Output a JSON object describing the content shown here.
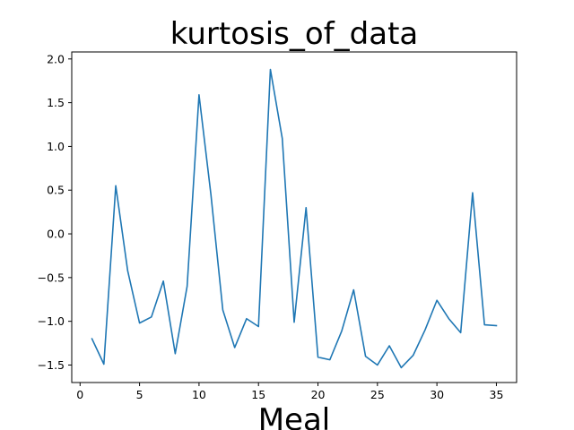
{
  "chart_data": {
    "type": "line",
    "title": "kurtosis_of_data",
    "xlabel": "Meal",
    "ylabel": "",
    "xlim": [
      -0.7,
      36.7
    ],
    "ylim": [
      -1.7,
      2.08
    ],
    "xticks": [
      0,
      5,
      10,
      15,
      20,
      25,
      30,
      35
    ],
    "yticks": [
      -1.5,
      -1.0,
      -0.5,
      0.0,
      0.5,
      1.0,
      1.5,
      2.0
    ],
    "xtick_labels": [
      "0",
      "5",
      "10",
      "15",
      "20",
      "25",
      "30",
      "35"
    ],
    "ytick_labels": [
      "−1.5",
      "−1.0",
      "−0.5",
      "0.0",
      "0.5",
      "1.0",
      "1.5",
      "2.0"
    ],
    "grid": false,
    "series": [
      {
        "color": "#1f77b4",
        "x": [
          1,
          2,
          3,
          4,
          5,
          6,
          7,
          8,
          9,
          10,
          11,
          12,
          13,
          14,
          15,
          16,
          17,
          18,
          19,
          20,
          21,
          22,
          23,
          24,
          25,
          26,
          27,
          28,
          29,
          30,
          31,
          32,
          33,
          34,
          35
        ],
        "values": [
          -1.2,
          -1.49,
          0.55,
          -0.42,
          -1.02,
          -0.95,
          -0.54,
          -1.37,
          -0.6,
          1.59,
          0.45,
          -0.87,
          -1.3,
          -0.97,
          -1.06,
          1.88,
          1.09,
          -1.01,
          0.3,
          -1.41,
          -1.44,
          -1.11,
          -0.64,
          -1.4,
          -1.5,
          -1.28,
          -1.53,
          -1.39,
          -1.1,
          -0.76,
          -0.97,
          -1.13,
          0.47,
          -1.04,
          -1.05
        ]
      }
    ]
  }
}
